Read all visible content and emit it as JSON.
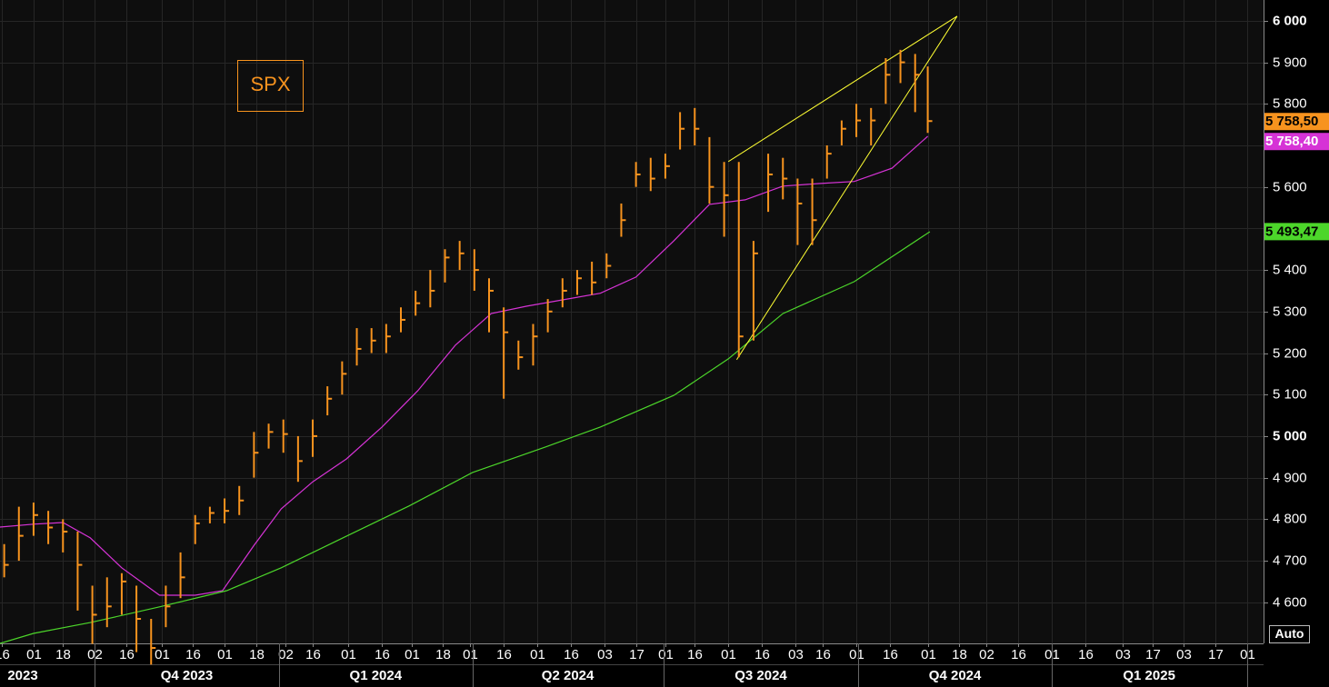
{
  "chart_data": {
    "type": "ohlc",
    "title": "SPX",
    "color": "#f7931e",
    "x": [
      -14,
      -7,
      0,
      7,
      14,
      21,
      28,
      35,
      42,
      49,
      56,
      63,
      70,
      77,
      84,
      91,
      98,
      105,
      112,
      119,
      126,
      133,
      140,
      147,
      154,
      161,
      168,
      175,
      182,
      189,
      196,
      203,
      210,
      217,
      224,
      231,
      238,
      245,
      252,
      259,
      266,
      273,
      280,
      287,
      294,
      301,
      308,
      315,
      322,
      329,
      336,
      343,
      350,
      357,
      364,
      371,
      378,
      385,
      392,
      399,
      406,
      413,
      420,
      426
    ],
    "high": [
      4740,
      4830,
      4840,
      4820,
      4800,
      4770,
      4640,
      4660,
      4670,
      4640,
      4560,
      4640,
      4720,
      4810,
      4830,
      4850,
      4880,
      5010,
      5030,
      5040,
      5000,
      5040,
      5120,
      5180,
      5260,
      5260,
      5270,
      5310,
      5350,
      5400,
      5450,
      5470,
      5450,
      5380,
      5310,
      5230,
      5270,
      5330,
      5380,
      5400,
      5420,
      5440,
      5560,
      5660,
      5670,
      5680,
      5780,
      5790,
      5720,
      5660,
      5660,
      5470,
      5680,
      5670,
      5620,
      5620,
      5700,
      5760,
      5800,
      5790,
      5910,
      5930,
      5920,
      5890
    ],
    "low": [
      4660,
      4700,
      4760,
      4740,
      4720,
      4580,
      4500,
      4540,
      4570,
      4480,
      4450,
      4540,
      4610,
      4740,
      4790,
      4790,
      4810,
      4900,
      4970,
      4960,
      4890,
      4950,
      5050,
      5100,
      5170,
      5200,
      5200,
      5250,
      5290,
      5310,
      5370,
      5400,
      5350,
      5250,
      5090,
      5160,
      5170,
      5250,
      5310,
      5340,
      5340,
      5380,
      5480,
      5600,
      5590,
      5620,
      5690,
      5700,
      5560,
      5480,
      5190,
      5230,
      5540,
      5570,
      5460,
      5460,
      5620,
      5700,
      5720,
      5700,
      5800,
      5850,
      5780,
      5730
    ],
    "close": [
      4690,
      4760,
      4810,
      4780,
      4770,
      4690,
      4570,
      4590,
      4650,
      4560,
      4490,
      4590,
      4660,
      4790,
      4815,
      4820,
      4845,
      4960,
      5010,
      5005,
      4940,
      5000,
      5090,
      5150,
      5210,
      5230,
      5240,
      5280,
      5320,
      5350,
      5430,
      5440,
      5400,
      5350,
      5250,
      5190,
      5240,
      5300,
      5350,
      5380,
      5370,
      5410,
      5520,
      5630,
      5620,
      5650,
      5740,
      5740,
      5600,
      5580,
      5240,
      5440,
      5630,
      5620,
      5560,
      5520,
      5680,
      5740,
      5760,
      5760,
      5870,
      5900,
      5870,
      5758.5
    ],
    "last_label": "5 758,50",
    "overlays": [
      {
        "color": "#d633d6",
        "x": [
          -16,
          0,
          14,
          27,
          42,
          60,
          77,
          90,
          105,
          118,
          133,
          149,
          166,
          183,
          201,
          218,
          235,
          252,
          270,
          287,
          305,
          322,
          339,
          357,
          374,
          391,
          409,
          426
        ],
        "values": [
          4781,
          4788,
          4792,
          4755,
          4683,
          4617,
          4617,
          4628,
          4737,
          4825,
          4890,
          4945,
          5022,
          5109,
          5219,
          5295,
          5313,
          5328,
          5344,
          5383,
          5470,
          5558,
          5569,
          5602,
          5608,
          5613,
          5645,
          5722
        ],
        "last_value": 5758.4,
        "last_label": "5 758,40"
      },
      {
        "color": "#4cd62a",
        "x": [
          -16,
          0,
          27,
          60,
          92,
          118,
          149,
          179,
          209,
          244,
          270,
          305,
          331,
          357,
          391,
          427
        ],
        "values": [
          4501,
          4525,
          4551,
          4589,
          4628,
          4683,
          4759,
          4832,
          4912,
          4974,
          5022,
          5098,
          5186,
          5295,
          5372,
          5492
        ],
        "last_value": 5493.47,
        "last_label": "5 493,47"
      }
    ],
    "trendlines": [
      {
        "color": "#ffff33",
        "x": [
          331,
          440
        ],
        "y": [
          5661,
          6011
        ]
      },
      {
        "color": "#ffff33",
        "x": [
          335,
          440
        ],
        "y": [
          5184,
          6011
        ]
      }
    ],
    "xlim": [
      -16,
      586
    ],
    "ylim": [
      4501,
      6050
    ],
    "yticks": [
      {
        "value": 4600,
        "label": "4 600"
      },
      {
        "value": 4700,
        "label": "4 700"
      },
      {
        "value": 4800,
        "label": "4 800"
      },
      {
        "value": 4900,
        "label": "4 900"
      },
      {
        "value": 5000,
        "label": "5 000"
      },
      {
        "value": 5100,
        "label": "5 100"
      },
      {
        "value": 5200,
        "label": "5 200"
      },
      {
        "value": 5300,
        "label": "5 300"
      },
      {
        "value": 5400,
        "label": "5 400"
      },
      {
        "value": 5500,
        "label": "5 500"
      },
      {
        "value": 5600,
        "label": "5 600"
      },
      {
        "value": 5700,
        "label": "5 700"
      },
      {
        "value": 5800,
        "label": "5 800"
      },
      {
        "value": 5900,
        "label": "5 900"
      },
      {
        "value": 6000,
        "label": "6 000"
      }
    ],
    "xticks": [
      {
        "value": -15,
        "label": "16"
      },
      {
        "value": 0,
        "label": "01"
      },
      {
        "value": 14,
        "label": "18"
      },
      {
        "value": 29,
        "label": "02"
      },
      {
        "value": 44,
        "label": "16"
      },
      {
        "value": 61,
        "label": "01"
      },
      {
        "value": 76,
        "label": "16"
      },
      {
        "value": 91,
        "label": "01"
      },
      {
        "value": 106,
        "label": "18"
      },
      {
        "value": 120,
        "label": "02"
      },
      {
        "value": 133,
        "label": "16"
      },
      {
        "value": 150,
        "label": "01"
      },
      {
        "value": 166,
        "label": "16"
      },
      {
        "value": 180,
        "label": "01"
      },
      {
        "value": 195,
        "label": "18"
      },
      {
        "value": 208,
        "label": "01"
      },
      {
        "value": 224,
        "label": "16"
      },
      {
        "value": 240,
        "label": "01"
      },
      {
        "value": 256,
        "label": "16"
      },
      {
        "value": 272,
        "label": "03"
      },
      {
        "value": 287,
        "label": "17"
      },
      {
        "value": 301,
        "label": "01"
      },
      {
        "value": 315,
        "label": "16"
      },
      {
        "value": 331,
        "label": "01"
      },
      {
        "value": 347,
        "label": "16"
      },
      {
        "value": 363,
        "label": "03"
      },
      {
        "value": 376,
        "label": "16"
      },
      {
        "value": 392,
        "label": "01"
      },
      {
        "value": 408,
        "label": "16"
      },
      {
        "value": 426,
        "label": "01"
      },
      {
        "value": 441,
        "label": "18"
      },
      {
        "value": 454,
        "label": "02"
      },
      {
        "value": 469,
        "label": "16"
      },
      {
        "value": 485,
        "label": "01"
      },
      {
        "value": 501,
        "label": "16"
      },
      {
        "value": 519,
        "label": "03"
      },
      {
        "value": 533,
        "label": "17"
      },
      {
        "value": 548,
        "label": "03"
      },
      {
        "value": 563,
        "label": "17"
      },
      {
        "value": 578,
        "label": "01"
      }
    ],
    "period_breaks": [
      29,
      117,
      209,
      300,
      393,
      485,
      578
    ],
    "period_labels": [
      "2023",
      "Q4 2023",
      "Q1 2024",
      "Q2 2024",
      "Q3 2024",
      "Q4 2024",
      "Q1 2025"
    ],
    "grid": true
  },
  "ui": {
    "auto_button": "Auto"
  }
}
